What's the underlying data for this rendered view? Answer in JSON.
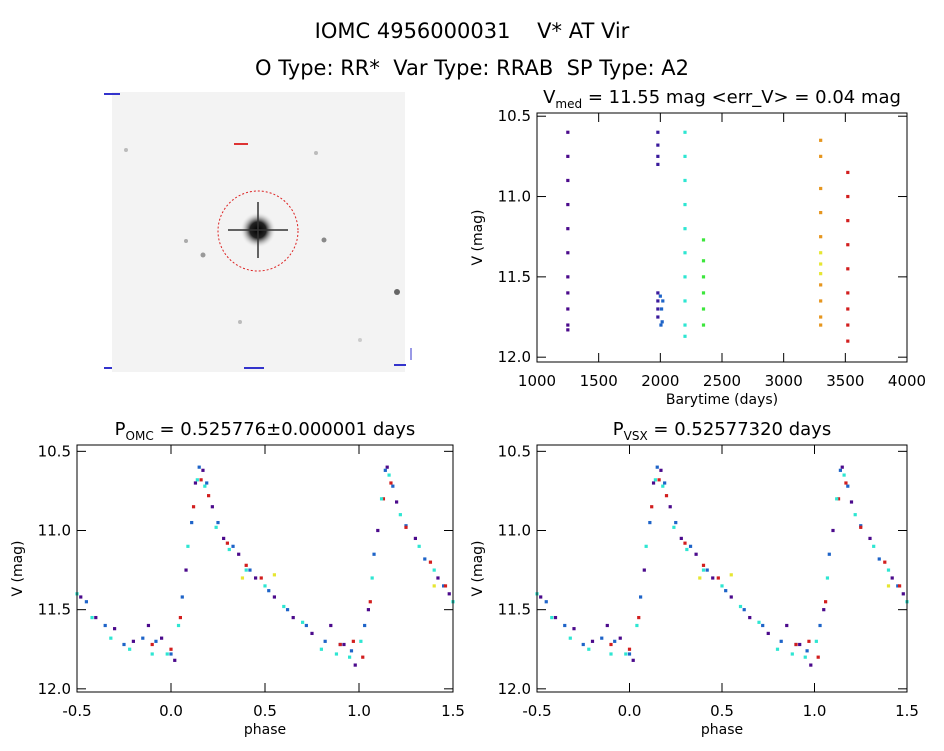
{
  "header": {
    "title": "IOMC 4956000031    V* AT Vir",
    "subtitle": "O Type: RR*  Var Type: RRAB  SP Type: A2"
  },
  "chart_data": [
    {
      "type": "scatter",
      "title": "V",
      "title_sub": "med",
      "title_rest": " = 11.55 mag <err_V> = 0.04 mag",
      "xlabel": "Barytime (days)",
      "ylabel": "V (mag)",
      "xlim": [
        1000,
        4000
      ],
      "ylim": [
        10.48,
        12.03
      ],
      "y_inverted": true,
      "xticks": [
        1000,
        1500,
        2000,
        2500,
        3000,
        3500,
        4000
      ],
      "yticks": [
        10.5,
        {
          "value": 11,
          "label": "11.0"
        },
        11.5,
        {
          "value": 12,
          "label": "12.0"
        }
      ],
      "series": [
        {
          "color": "#4b0a8c",
          "x": [
            1250,
            1250,
            1250,
            1250,
            1250,
            1250,
            1250,
            1250,
            1250,
            1250,
            1250
          ],
          "values": [
            10.6,
            10.75,
            10.9,
            11.05,
            11.2,
            11.35,
            11.5,
            11.6,
            11.7,
            11.8,
            11.83
          ]
        },
        {
          "color": "#3a1a9c",
          "x": [
            1980,
            1980,
            1980,
            1980,
            1980,
            1980,
            1980,
            1980
          ],
          "values": [
            10.6,
            10.68,
            10.75,
            10.8,
            11.6,
            11.65,
            11.7,
            11.75
          ]
        },
        {
          "color": "#1e64c8",
          "x": [
            2000,
            2010,
            2015,
            2020,
            2005
          ],
          "values": [
            11.62,
            11.7,
            11.78,
            11.65,
            11.8
          ]
        },
        {
          "color": "#2ee6d2",
          "x": [
            2200,
            2200,
            2200,
            2200,
            2200,
            2200,
            2200,
            2200,
            2200,
            2200
          ],
          "values": [
            10.6,
            10.75,
            10.9,
            11.05,
            11.2,
            11.35,
            11.5,
            11.65,
            11.8,
            11.87
          ]
        },
        {
          "color": "#3ce63c",
          "x": [
            2350,
            2350,
            2350,
            2350,
            2350,
            2350
          ],
          "values": [
            11.27,
            11.4,
            11.5,
            11.6,
            11.7,
            11.8
          ]
        },
        {
          "color": "#e6961e",
          "x": [
            3300,
            3300,
            3300,
            3300,
            3300,
            3300,
            3300,
            3300,
            3300
          ],
          "values": [
            10.65,
            10.75,
            10.95,
            11.1,
            11.25,
            11.55,
            11.65,
            11.75,
            11.8
          ]
        },
        {
          "color": "#e6e632",
          "x": [
            3300,
            3300,
            3300
          ],
          "values": [
            11.35,
            11.42,
            11.48
          ]
        },
        {
          "color": "#d21e1e",
          "x": [
            3520,
            3520,
            3520,
            3520,
            3520,
            3520,
            3520,
            3520,
            3520
          ],
          "values": [
            10.85,
            11.0,
            11.15,
            11.3,
            11.45,
            11.6,
            11.7,
            11.8,
            11.9
          ]
        }
      ]
    },
    {
      "type": "scatter",
      "title": "P",
      "title_sub": "OMC",
      "title_rest": " = 0.525776±0.000001 days",
      "xlabel": "phase",
      "ylabel": "V (mag)",
      "xlim": [
        -0.5,
        1.5
      ],
      "ylim": [
        10.46,
        12.02
      ],
      "y_inverted": true,
      "xticks": [
        -0.5,
        {
          "value": 0,
          "label": "0.0"
        },
        0.5,
        {
          "value": 1,
          "label": "1.0"
        },
        1.5
      ],
      "yticks": [
        10.5,
        {
          "value": 11,
          "label": "11.0"
        },
        11.5,
        {
          "value": 12,
          "label": "12.0"
        }
      ],
      "series": [
        {
          "color": "#4b0a8c",
          "x": [
            -0.48,
            -0.4,
            -0.3,
            -0.2,
            -0.12,
            -0.05,
            0.02,
            0.08,
            0.13,
            0.17,
            0.22,
            0.28,
            0.36,
            0.45,
            0.55,
            0.65,
            0.75,
            0.85,
            0.92,
            0.98,
            1.05,
            1.1,
            1.15,
            1.2,
            1.3,
            1.42,
            1.48
          ],
          "values": [
            11.42,
            11.55,
            11.62,
            11.7,
            11.6,
            11.68,
            11.82,
            11.25,
            10.7,
            10.62,
            10.85,
            11.05,
            11.15,
            11.3,
            11.42,
            11.55,
            11.65,
            11.6,
            11.72,
            11.85,
            11.5,
            11.0,
            10.6,
            10.82,
            11.05,
            11.3,
            11.4
          ]
        },
        {
          "color": "#1e64c8",
          "x": [
            -0.45,
            -0.35,
            -0.25,
            -0.15,
            -0.08,
            0.0,
            0.06,
            0.11,
            0.15,
            0.19,
            0.25,
            0.33,
            0.42,
            0.52,
            0.62,
            0.72,
            0.82,
            0.9,
            0.96,
            1.03,
            1.08,
            1.14,
            1.18,
            1.25,
            1.35,
            1.45
          ],
          "values": [
            11.45,
            11.6,
            11.72,
            11.68,
            11.7,
            11.78,
            11.42,
            10.95,
            10.6,
            10.7,
            10.95,
            11.1,
            11.25,
            11.38,
            11.5,
            11.6,
            11.7,
            11.72,
            11.76,
            11.6,
            11.15,
            10.62,
            10.72,
            10.97,
            11.18,
            11.35
          ]
        },
        {
          "color": "#d21e1e",
          "x": [
            -0.1,
            0.0,
            0.05,
            0.12,
            0.16,
            0.2,
            0.3,
            0.4,
            0.48,
            0.9,
            0.97,
            1.02,
            1.06,
            1.13,
            1.17,
            1.25,
            1.38,
            1.46
          ],
          "values": [
            11.72,
            11.75,
            11.55,
            10.85,
            10.68,
            10.78,
            11.08,
            11.22,
            11.3,
            11.72,
            11.7,
            11.8,
            11.45,
            10.8,
            10.7,
            10.98,
            11.2,
            11.35
          ]
        },
        {
          "color": "#e6e632",
          "x": [
            0.38,
            0.55,
            1.4
          ],
          "values": [
            11.3,
            11.28,
            11.35
          ]
        },
        {
          "color": "#2ee6d2",
          "x": [
            -0.5,
            -0.42,
            -0.32,
            -0.22,
            -0.1,
            -0.02,
            0.04,
            0.09,
            0.14,
            0.18,
            0.24,
            0.31,
            0.4,
            0.5,
            0.6,
            0.7,
            0.8,
            0.88,
            0.95,
            1.01,
            1.07,
            1.12,
            1.16,
            1.22,
            1.32,
            1.4,
            1.5
          ],
          "values": [
            11.4,
            11.55,
            11.68,
            11.75,
            11.78,
            11.78,
            11.6,
            11.1,
            10.68,
            10.72,
            10.98,
            11.12,
            11.25,
            11.35,
            11.48,
            11.58,
            11.75,
            11.78,
            11.8,
            11.7,
            11.3,
            10.8,
            10.65,
            10.9,
            11.1,
            11.25,
            11.45
          ]
        }
      ]
    },
    {
      "type": "scatter",
      "title": "P",
      "title_sub": "VSX",
      "title_rest": " = 0.52577320 days",
      "xlabel": "phase",
      "ylabel": "V (mag)",
      "xlim": [
        -0.5,
        1.5
      ],
      "ylim": [
        10.46,
        12.02
      ],
      "y_inverted": true,
      "xticks": [
        -0.5,
        {
          "value": 0,
          "label": "0.0"
        },
        0.5,
        {
          "value": 1,
          "label": "1.0"
        },
        1.5
      ],
      "yticks": [
        10.5,
        {
          "value": 11,
          "label": "11.0"
        },
        11.5,
        {
          "value": 12,
          "label": "12.0"
        }
      ],
      "series": [
        {
          "color": "#4b0a8c",
          "x": [
            -0.48,
            -0.4,
            -0.3,
            -0.2,
            -0.12,
            -0.05,
            0.02,
            0.08,
            0.13,
            0.17,
            0.22,
            0.28,
            0.36,
            0.45,
            0.55,
            0.65,
            0.75,
            0.85,
            0.92,
            0.98,
            1.05,
            1.1,
            1.15,
            1.2,
            1.3,
            1.42,
            1.48
          ],
          "values": [
            11.42,
            11.55,
            11.62,
            11.7,
            11.6,
            11.68,
            11.82,
            11.25,
            10.7,
            10.62,
            10.85,
            11.05,
            11.15,
            11.3,
            11.42,
            11.55,
            11.65,
            11.6,
            11.72,
            11.85,
            11.5,
            11.0,
            10.6,
            10.82,
            11.05,
            11.3,
            11.4
          ]
        },
        {
          "color": "#1e64c8",
          "x": [
            -0.45,
            -0.35,
            -0.25,
            -0.15,
            -0.08,
            0.0,
            0.06,
            0.11,
            0.15,
            0.19,
            0.25,
            0.33,
            0.42,
            0.52,
            0.62,
            0.72,
            0.82,
            0.9,
            0.96,
            1.03,
            1.08,
            1.14,
            1.18,
            1.25,
            1.35,
            1.45
          ],
          "values": [
            11.45,
            11.6,
            11.72,
            11.68,
            11.7,
            11.78,
            11.42,
            10.95,
            10.6,
            10.7,
            10.95,
            11.1,
            11.25,
            11.38,
            11.5,
            11.6,
            11.7,
            11.72,
            11.76,
            11.6,
            11.15,
            10.62,
            10.72,
            10.97,
            11.18,
            11.35
          ]
        },
        {
          "color": "#d21e1e",
          "x": [
            -0.1,
            0.0,
            0.05,
            0.12,
            0.16,
            0.2,
            0.3,
            0.4,
            0.48,
            0.9,
            0.97,
            1.02,
            1.06,
            1.13,
            1.17,
            1.25,
            1.38,
            1.46
          ],
          "values": [
            11.72,
            11.75,
            11.55,
            10.85,
            10.68,
            10.78,
            11.08,
            11.22,
            11.3,
            11.72,
            11.7,
            11.8,
            11.45,
            10.8,
            10.7,
            10.98,
            11.2,
            11.35
          ]
        },
        {
          "color": "#e6e632",
          "x": [
            0.38,
            0.55,
            1.4
          ],
          "values": [
            11.3,
            11.28,
            11.35
          ]
        },
        {
          "color": "#2ee6d2",
          "x": [
            -0.5,
            -0.42,
            -0.32,
            -0.22,
            -0.1,
            -0.02,
            0.04,
            0.09,
            0.14,
            0.18,
            0.24,
            0.31,
            0.4,
            0.5,
            0.6,
            0.7,
            0.8,
            0.88,
            0.95,
            1.01,
            1.07,
            1.12,
            1.16,
            1.22,
            1.32,
            1.4,
            1.5
          ],
          "values": [
            11.4,
            11.55,
            11.68,
            11.75,
            11.78,
            11.78,
            11.6,
            11.1,
            10.68,
            10.72,
            10.98,
            11.12,
            11.25,
            11.35,
            11.48,
            11.58,
            11.75,
            11.78,
            11.8,
            11.7,
            11.3,
            10.8,
            10.65,
            10.9,
            11.1,
            11.25,
            11.45
          ]
        }
      ]
    }
  ]
}
